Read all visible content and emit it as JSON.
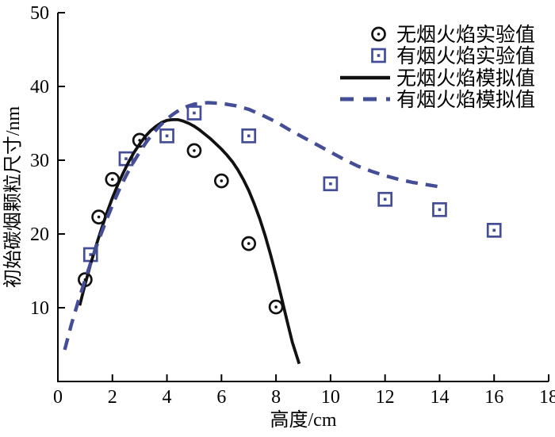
{
  "figure": {
    "background": "#ffffff",
    "axis_color": "#000000",
    "text_color": "#000000"
  },
  "chart_data": {
    "type": "line",
    "title": "",
    "xlabel": "高度/cm",
    "ylabel": "初始碳烟颗粒尺寸/nm",
    "xlim": [
      0,
      18
    ],
    "ylim": [
      0,
      50
    ],
    "xticks": [
      0,
      2,
      4,
      6,
      8,
      10,
      12,
      14,
      16,
      18
    ],
    "yticks": [
      10,
      20,
      30,
      40,
      50
    ],
    "grid": false,
    "legend_position": "top-right",
    "colors": {
      "smokeless": "#111111",
      "smoky": "#434e96"
    },
    "series": [
      {
        "name": "无烟火焰实验值",
        "kind": "scatter",
        "marker": "circle-dot",
        "color": "#111111",
        "points": [
          [
            1.0,
            13.8
          ],
          [
            1.5,
            22.3
          ],
          [
            2.0,
            27.4
          ],
          [
            3.0,
            32.7
          ],
          [
            5.0,
            31.3
          ],
          [
            6.0,
            27.2
          ],
          [
            7.0,
            18.7
          ],
          [
            8.0,
            10.1
          ]
        ]
      },
      {
        "name": "有烟火焰实验值",
        "kind": "scatter",
        "marker": "square-dot",
        "color": "#434e96",
        "points": [
          [
            1.2,
            17.2
          ],
          [
            2.5,
            30.2
          ],
          [
            4.0,
            33.3
          ],
          [
            5.0,
            36.4
          ],
          [
            7.0,
            33.3
          ],
          [
            10.0,
            26.8
          ],
          [
            12.0,
            24.7
          ],
          [
            14.0,
            23.3
          ],
          [
            16.0,
            20.5
          ]
        ]
      },
      {
        "name": "无烟火焰模拟值",
        "kind": "line",
        "style": "solid",
        "color": "#111111",
        "points": [
          [
            0.8,
            10.3
          ],
          [
            1.0,
            13.2
          ],
          [
            1.2,
            15.9
          ],
          [
            1.4,
            18.4
          ],
          [
            1.6,
            20.7
          ],
          [
            1.8,
            22.9
          ],
          [
            2.0,
            24.9
          ],
          [
            2.2,
            26.7
          ],
          [
            2.4,
            28.3
          ],
          [
            2.6,
            29.8
          ],
          [
            2.8,
            31.1
          ],
          [
            3.0,
            32.2
          ],
          [
            3.2,
            33.2
          ],
          [
            3.4,
            34.0
          ],
          [
            3.6,
            34.6
          ],
          [
            3.8,
            35.1
          ],
          [
            4.0,
            35.4
          ],
          [
            4.2,
            35.5
          ],
          [
            4.4,
            35.5
          ],
          [
            4.6,
            35.3
          ],
          [
            4.8,
            35.0
          ],
          [
            5.0,
            34.6
          ],
          [
            5.2,
            34.1
          ],
          [
            5.4,
            33.5
          ],
          [
            5.6,
            32.9
          ],
          [
            5.8,
            32.2
          ],
          [
            6.0,
            31.5
          ],
          [
            6.2,
            30.7
          ],
          [
            6.4,
            29.8
          ],
          [
            6.6,
            28.7
          ],
          [
            6.8,
            27.4
          ],
          [
            7.0,
            25.9
          ],
          [
            7.2,
            24.1
          ],
          [
            7.4,
            22.1
          ],
          [
            7.6,
            19.8
          ],
          [
            7.8,
            17.2
          ],
          [
            8.0,
            14.4
          ],
          [
            8.2,
            11.4
          ],
          [
            8.4,
            8.3
          ],
          [
            8.6,
            5.3
          ],
          [
            8.85,
            2.4
          ]
        ]
      },
      {
        "name": "有烟火焰模拟值",
        "kind": "line",
        "style": "dashed",
        "color": "#434e96",
        "points": [
          [
            0.25,
            4.3
          ],
          [
            0.5,
            7.8
          ],
          [
            0.75,
            10.9
          ],
          [
            1.0,
            13.8
          ],
          [
            1.25,
            16.6
          ],
          [
            1.5,
            19.2
          ],
          [
            1.75,
            21.6
          ],
          [
            2.0,
            23.9
          ],
          [
            2.25,
            26.0
          ],
          [
            2.5,
            27.9
          ],
          [
            2.75,
            29.6
          ],
          [
            3.0,
            31.1
          ],
          [
            3.25,
            32.5
          ],
          [
            3.5,
            33.7
          ],
          [
            3.75,
            34.7
          ],
          [
            4.0,
            35.6
          ],
          [
            4.25,
            36.3
          ],
          [
            4.5,
            36.9
          ],
          [
            4.75,
            37.3
          ],
          [
            5.0,
            37.6
          ],
          [
            5.5,
            37.8
          ],
          [
            6.0,
            37.7
          ],
          [
            6.5,
            37.4
          ],
          [
            7.0,
            36.9
          ],
          [
            7.5,
            36.1
          ],
          [
            8.0,
            35.2
          ],
          [
            8.5,
            34.1
          ],
          [
            9.0,
            33.1
          ],
          [
            9.5,
            32.1
          ],
          [
            10.0,
            31.1
          ],
          [
            10.5,
            30.1
          ],
          [
            11.0,
            29.2
          ],
          [
            11.5,
            28.5
          ],
          [
            12.0,
            27.9
          ],
          [
            12.5,
            27.4
          ],
          [
            13.0,
            27.0
          ],
          [
            13.5,
            26.7
          ],
          [
            14.0,
            26.4
          ]
        ]
      }
    ]
  }
}
